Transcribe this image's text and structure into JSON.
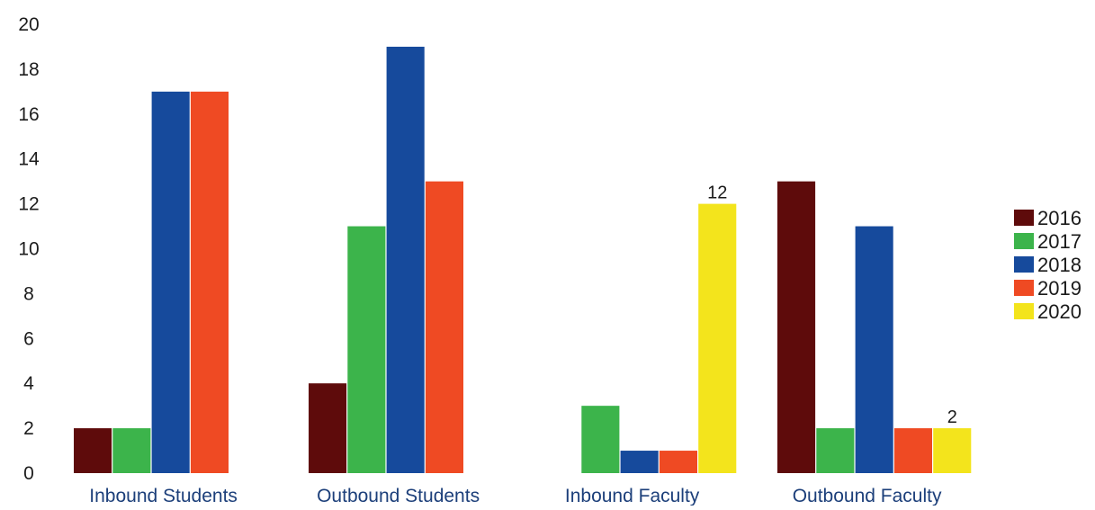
{
  "chart_data": {
    "type": "bar",
    "title": "",
    "xlabel": "",
    "ylabel": "",
    "ylim": [
      0,
      20
    ],
    "y_ticks": [
      "0",
      "2",
      "4",
      "6",
      "8",
      "10",
      "12",
      "14",
      "16",
      "18",
      "20"
    ],
    "grid": false,
    "legend_position": "right",
    "categories": [
      "Inbound Students",
      "Outbound Students",
      "Inbound Faculty",
      "Outbound Faculty"
    ],
    "series": [
      {
        "name": "2016",
        "color": "#5e0b0b",
        "values": [
          2,
          4,
          0,
          13
        ]
      },
      {
        "name": "2017",
        "color": "#3cb44b",
        "values": [
          2,
          11,
          3,
          2
        ]
      },
      {
        "name": "2018",
        "color": "#164a9c",
        "values": [
          17,
          19,
          1,
          11
        ]
      },
      {
        "name": "2019",
        "color": "#ef4a23",
        "values": [
          17,
          13,
          1,
          2
        ]
      },
      {
        "name": "2020",
        "color": "#f3e41c",
        "values": [
          0,
          0,
          12,
          2
        ]
      }
    ],
    "data_labels": [
      {
        "category": "Inbound Faculty",
        "series": "2020",
        "text": "12"
      },
      {
        "category": "Outbound Faculty",
        "series": "2020",
        "text": "2"
      }
    ]
  }
}
